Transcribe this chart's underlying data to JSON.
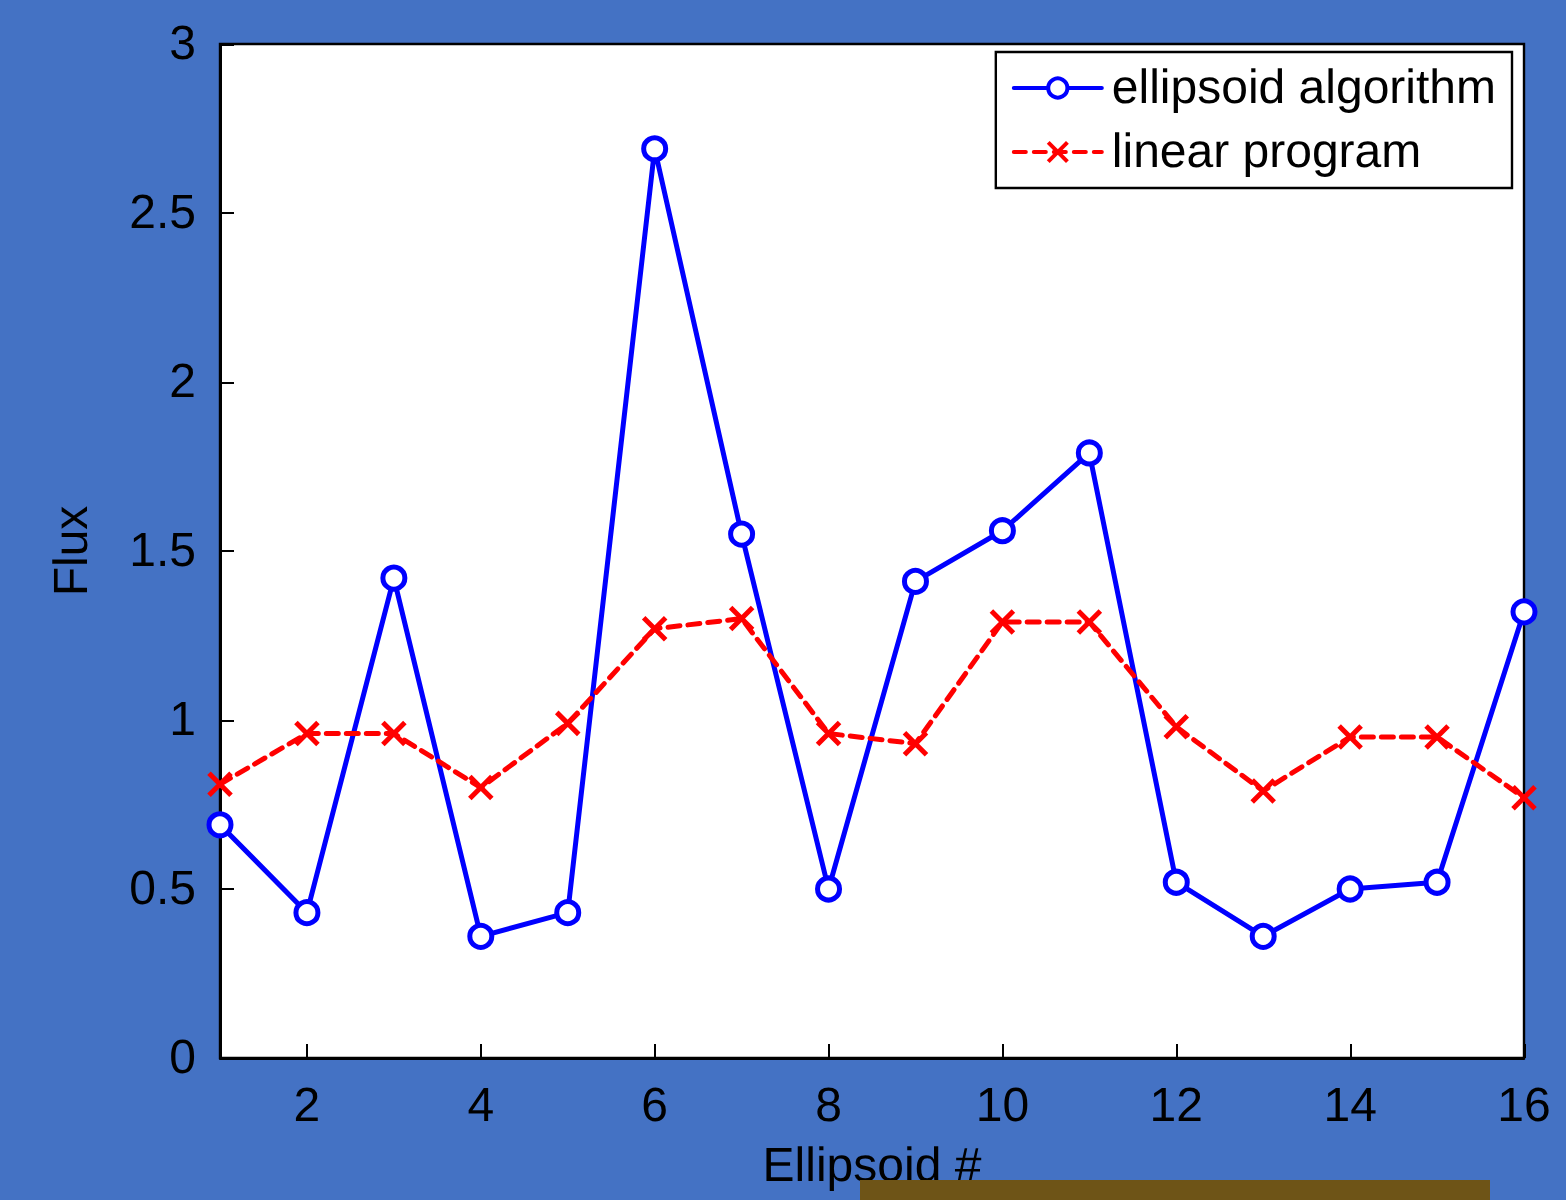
{
  "chart_data": {
    "type": "line",
    "xlabel": "Ellipsoid #",
    "ylabel": "Flux",
    "x": [
      1,
      2,
      3,
      4,
      5,
      6,
      7,
      8,
      9,
      10,
      11,
      12,
      13,
      14,
      15,
      16
    ],
    "series": [
      {
        "name": "ellipsoid algorithm",
        "color": "#0000ff",
        "marker": "circle",
        "line_style": "solid",
        "values": [
          0.69,
          0.43,
          1.42,
          0.36,
          0.43,
          2.69,
          1.55,
          0.5,
          1.41,
          1.56,
          1.79,
          0.52,
          0.36,
          0.5,
          0.52,
          1.32
        ]
      },
      {
        "name": "linear program",
        "color": "#ff0000",
        "marker": "cross",
        "line_style": "dashed",
        "values": [
          0.81,
          0.96,
          0.96,
          0.8,
          0.99,
          1.27,
          1.3,
          0.96,
          0.93,
          1.29,
          1.29,
          0.98,
          0.79,
          0.95,
          0.95,
          0.77
        ]
      }
    ],
    "xlim": [
      1,
      16
    ],
    "xticks": [
      2,
      4,
      6,
      8,
      10,
      12,
      14,
      16
    ],
    "ylim": [
      0,
      3
    ],
    "yticks": [
      0,
      0.5,
      1,
      1.5,
      2,
      2.5,
      3
    ],
    "grid": false,
    "legend": "top right"
  }
}
